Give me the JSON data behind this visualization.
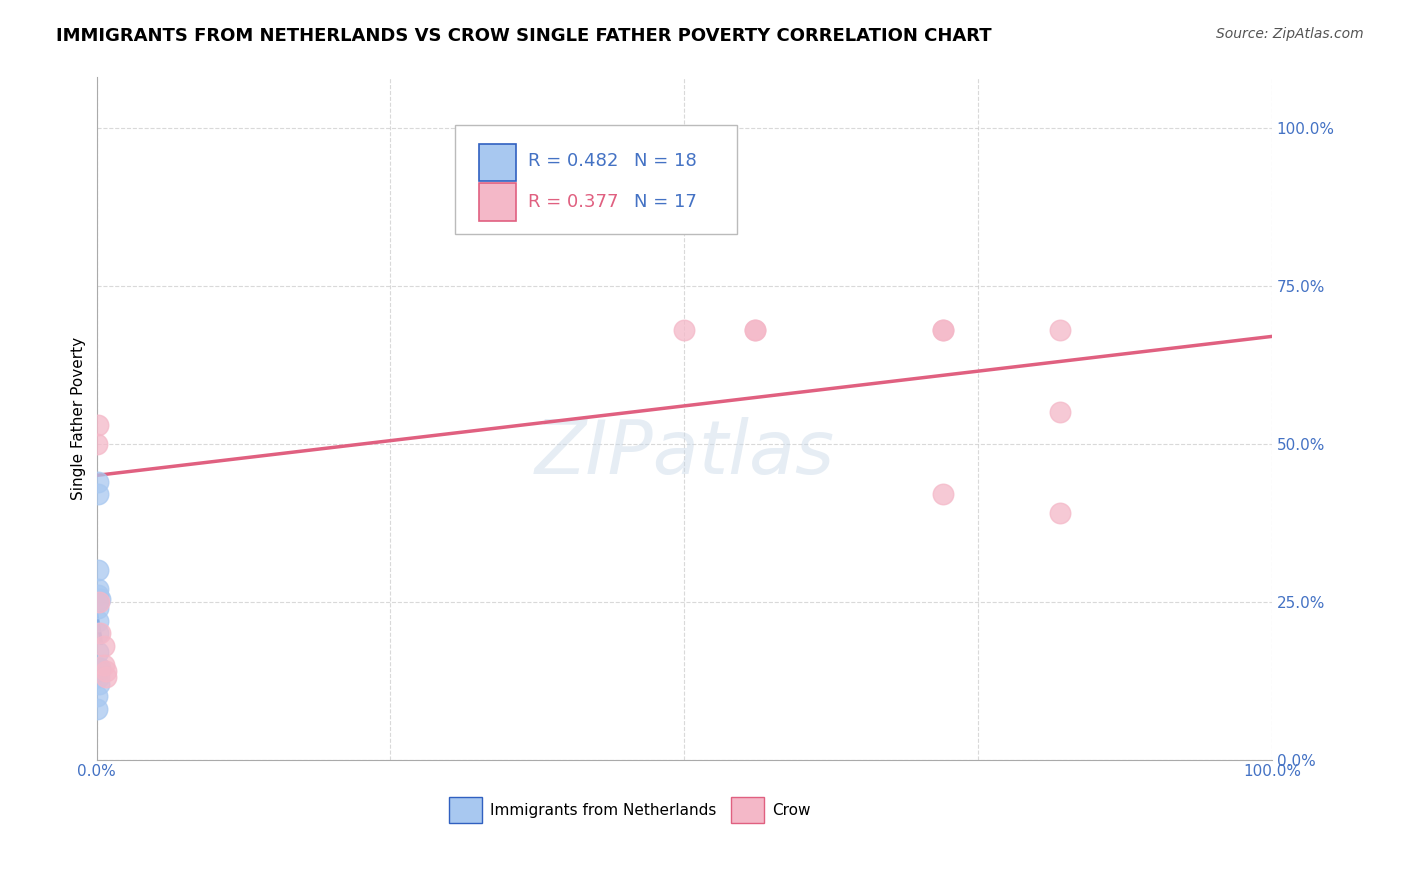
{
  "title": "IMMIGRANTS FROM NETHERLANDS VS CROW SINGLE FATHER POVERTY CORRELATION CHART",
  "source": "Source: ZipAtlas.com",
  "ylabel": "Single Father Poverty",
  "watermark": "ZIPatlas",
  "blue_R": "0.482",
  "blue_N": "18",
  "pink_R": "0.377",
  "pink_N": "17",
  "blue_color": "#a8c8f0",
  "pink_color": "#f4b8c8",
  "blue_line_color": "#3060c0",
  "pink_line_color": "#e06080",
  "blue_x": [
    0.0,
    0.0,
    0.001,
    0.001,
    0.001,
    0.001,
    0.001,
    0.001,
    0.001,
    0.001,
    0.001,
    0.001,
    0.002,
    0.002,
    0.002,
    0.002,
    0.003,
    0.003
  ],
  "blue_y": [
    0.1,
    0.08,
    0.44,
    0.42,
    0.3,
    0.27,
    0.26,
    0.25,
    0.24,
    0.22,
    0.2,
    0.17,
    0.145,
    0.14,
    0.13,
    0.12,
    0.255,
    0.145
  ],
  "pink_x": [
    0.0,
    0.001,
    0.002,
    0.003,
    0.006,
    0.008,
    0.5,
    0.56,
    0.72,
    0.82,
    0.72,
    0.82,
    0.82,
    0.56,
    0.72,
    0.006,
    0.008
  ],
  "pink_y": [
    0.5,
    0.53,
    0.25,
    0.2,
    0.18,
    0.14,
    0.68,
    0.68,
    0.68,
    0.68,
    0.42,
    0.55,
    0.39,
    0.68,
    0.68,
    0.15,
    0.13
  ],
  "xlim": [
    0.0,
    1.0
  ],
  "ylim": [
    0.0,
    1.08
  ],
  "ytick_values": [
    0.0,
    0.25,
    0.5,
    0.75,
    1.0
  ],
  "ytick_labels": [
    "0.0%",
    "25.0%",
    "50.0%",
    "75.0%",
    "100.0%"
  ],
  "xtick_values": [
    0.0,
    0.25,
    0.5,
    0.75,
    1.0
  ],
  "xtick_labels_bottom": [
    "0.0%",
    "",
    "",
    "",
    "100.0%"
  ],
  "grid_color": "#d0d0d0",
  "background_color": "#ffffff",
  "title_fontsize": 13,
  "axis_label_fontsize": 11,
  "tick_fontsize": 11,
  "legend_R_color_blue": "#4472c4",
  "legend_R_color_pink": "#e06080",
  "legend_N_color": "#4472c4",
  "blue_trendline_xlim": [
    0.0,
    0.015
  ],
  "blue_trendline_ylim_dashed_start": 0.55,
  "pink_trendline_at_x0": 0.45,
  "pink_trendline_at_x1": 0.67
}
